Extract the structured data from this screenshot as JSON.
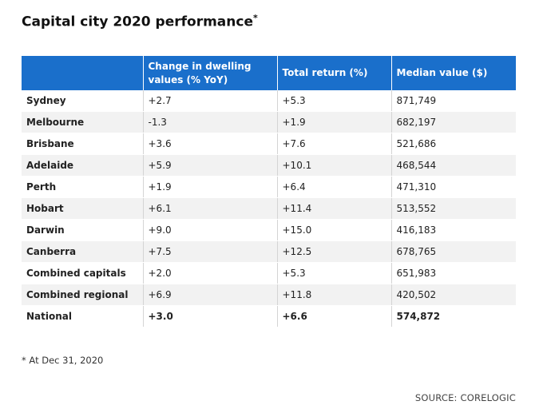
{
  "title": "Capital city 2020 performance",
  "title_mark": "*",
  "table": {
    "headers": [
      "",
      "Change in dwelling values (% YoY)",
      "Total return (%)",
      "Median value ($)"
    ],
    "rows": [
      [
        "Sydney",
        "+2.7",
        "+5.3",
        "871,749"
      ],
      [
        "Melbourne",
        "-1.3",
        "+1.9",
        "682,197"
      ],
      [
        "Brisbane",
        "+3.6",
        "+7.6",
        "521,686"
      ],
      [
        "Adelaide",
        "+5.9",
        "+10.1",
        "468,544"
      ],
      [
        "Perth",
        "+1.9",
        "+6.4",
        "471,310"
      ],
      [
        "Hobart",
        "+6.1",
        "+11.4",
        "513,552"
      ],
      [
        "Darwin",
        "+9.0",
        "+15.0",
        "416,183"
      ],
      [
        "Canberra",
        "+7.5",
        "+12.5",
        "678,765"
      ],
      [
        "Combined capitals",
        "+2.0",
        "+5.3",
        "651,983"
      ],
      [
        "Combined regional",
        "+6.9",
        "+11.8",
        "420,502"
      ],
      [
        "National",
        "+3.0",
        "+6.6",
        "574,872"
      ]
    ]
  },
  "footnote": "* At Dec 31, 2020",
  "source": "SOURCE: CORELOGIC",
  "colors": {
    "header_bg": "#1a6fcb",
    "stripe_bg": "#f2f2f2"
  }
}
